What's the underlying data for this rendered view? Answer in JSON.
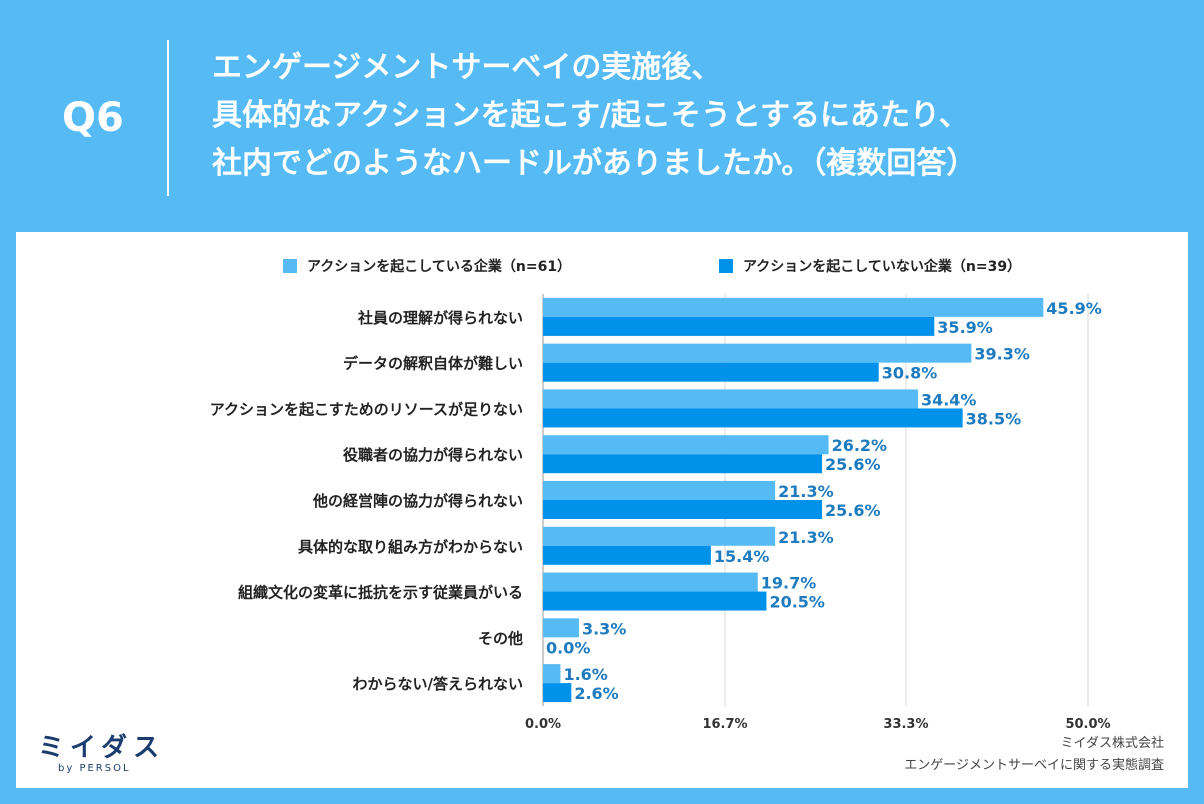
{
  "header": {
    "q_label": "Q6",
    "title_lines": [
      "エンゲージメントサーベイの実施後、",
      "具体的なアクションを起こす/起こそうとするにあたり、",
      "社内でどのようなハードルがありましたか。（複数回答）"
    ]
  },
  "colors": {
    "background": "#56bbf5",
    "series_light": "#56bbf5",
    "series_dark": "#0091ea",
    "value_label": "#1e7bbf"
  },
  "chart_data": {
    "type": "bar",
    "orientation": "horizontal",
    "categories": [
      "社員の理解が得られない",
      "データの解釈自体が難しい",
      "アクションを起こすためのリソースが足りない",
      "役職者の協力が得られない",
      "他の経営陣の協力が得られない",
      "具体的な取り組み方がわからない",
      "組織文化の変革に抵抗を示す従業員がいる",
      "その他",
      "わからない/答えられない"
    ],
    "series": [
      {
        "name": "アクションを起こしている企業（n=61）",
        "values": [
          45.9,
          39.3,
          34.4,
          26.2,
          21.3,
          21.3,
          19.7,
          3.3,
          1.6
        ],
        "labels": [
          "45.9%",
          "39.3%",
          "34.4%",
          "26.2%",
          "21.3%",
          "21.3%",
          "19.7%",
          "3.3%",
          "1.6%"
        ]
      },
      {
        "name": "アクションを起こしていない企業（n=39）",
        "values": [
          35.9,
          30.8,
          38.5,
          25.6,
          25.6,
          15.4,
          20.5,
          0.0,
          2.6
        ],
        "labels": [
          "35.9%",
          "30.8%",
          "38.5%",
          "25.6%",
          "25.6%",
          "15.4%",
          "20.5%",
          "0.0%",
          "2.6%"
        ]
      }
    ],
    "xlim": [
      0,
      50
    ],
    "xticks": [
      0,
      16.7,
      33.3,
      50
    ],
    "xtick_labels": [
      "0.0%",
      "16.7%",
      "33.3%",
      "50.0%"
    ],
    "grid": true,
    "legend_position": "top"
  },
  "footer": {
    "logo_text": "ミイダス",
    "logo_sub": "by PERSOL",
    "company": "ミイダス株式会社",
    "survey": "エンゲージメントサーベイに関する実態調査"
  }
}
